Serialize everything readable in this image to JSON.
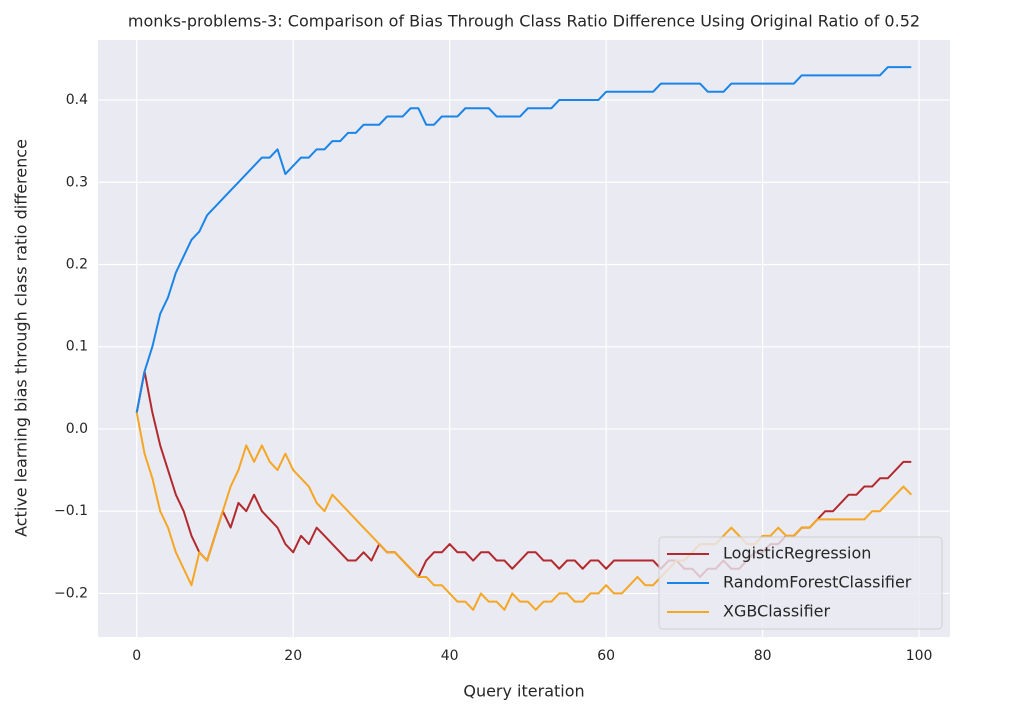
{
  "chart_data": {
    "type": "line",
    "title": "monks-problems-3: Comparison of Bias Through Class Ratio Difference Using Original Ratio of 0.52",
    "x_label": "Query iteration",
    "y_label": "Active learning bias through class ratio difference",
    "x": [
      0,
      1,
      2,
      3,
      4,
      5,
      6,
      7,
      8,
      9,
      10,
      11,
      12,
      13,
      14,
      15,
      16,
      17,
      18,
      19,
      20,
      21,
      22,
      23,
      24,
      25,
      26,
      27,
      28,
      29,
      30,
      31,
      32,
      33,
      34,
      35,
      36,
      37,
      38,
      39,
      40,
      41,
      42,
      43,
      44,
      45,
      46,
      47,
      48,
      49,
      50,
      51,
      52,
      53,
      54,
      55,
      56,
      57,
      58,
      59,
      60,
      61,
      62,
      63,
      64,
      65,
      66,
      67,
      68,
      69,
      70,
      71,
      72,
      73,
      74,
      75,
      76,
      77,
      78,
      79,
      80,
      81,
      82,
      83,
      84,
      85,
      86,
      87,
      88,
      89,
      90,
      91,
      92,
      93,
      94,
      95,
      96,
      97,
      98,
      99
    ],
    "series": [
      {
        "name": "LogisticRegression",
        "color": "#b22a2e",
        "values": [
          0.02,
          0.07,
          0.02,
          -0.02,
          -0.05,
          -0.08,
          -0.1,
          -0.13,
          -0.15,
          -0.16,
          -0.13,
          -0.1,
          -0.12,
          -0.09,
          -0.1,
          -0.08,
          -0.1,
          -0.11,
          -0.12,
          -0.14,
          -0.15,
          -0.13,
          -0.14,
          -0.12,
          -0.13,
          -0.14,
          -0.15,
          -0.16,
          -0.16,
          -0.15,
          -0.16,
          -0.14,
          -0.15,
          -0.15,
          -0.16,
          -0.17,
          -0.18,
          -0.16,
          -0.15,
          -0.15,
          -0.14,
          -0.15,
          -0.15,
          -0.16,
          -0.15,
          -0.15,
          -0.16,
          -0.16,
          -0.17,
          -0.16,
          -0.15,
          -0.15,
          -0.16,
          -0.16,
          -0.17,
          -0.16,
          -0.16,
          -0.17,
          -0.16,
          -0.16,
          -0.17,
          -0.16,
          -0.16,
          -0.16,
          -0.16,
          -0.16,
          -0.16,
          -0.17,
          -0.16,
          -0.16,
          -0.17,
          -0.17,
          -0.18,
          -0.17,
          -0.17,
          -0.16,
          -0.17,
          -0.17,
          -0.16,
          -0.15,
          -0.15,
          -0.14,
          -0.14,
          -0.13,
          -0.13,
          -0.12,
          -0.12,
          -0.11,
          -0.1,
          -0.1,
          -0.09,
          -0.08,
          -0.08,
          -0.07,
          -0.07,
          -0.06,
          -0.06,
          -0.05,
          -0.04,
          -0.04
        ]
      },
      {
        "name": "RandomForestClassifier",
        "color": "#1a85e8",
        "values": [
          0.02,
          0.07,
          0.1,
          0.14,
          0.16,
          0.19,
          0.21,
          0.23,
          0.24,
          0.26,
          0.27,
          0.28,
          0.29,
          0.3,
          0.31,
          0.32,
          0.33,
          0.33,
          0.34,
          0.31,
          0.32,
          0.33,
          0.33,
          0.34,
          0.34,
          0.35,
          0.35,
          0.36,
          0.36,
          0.37,
          0.37,
          0.37,
          0.38,
          0.38,
          0.38,
          0.39,
          0.39,
          0.37,
          0.37,
          0.38,
          0.38,
          0.38,
          0.39,
          0.39,
          0.39,
          0.39,
          0.38,
          0.38,
          0.38,
          0.38,
          0.39,
          0.39,
          0.39,
          0.39,
          0.4,
          0.4,
          0.4,
          0.4,
          0.4,
          0.4,
          0.41,
          0.41,
          0.41,
          0.41,
          0.41,
          0.41,
          0.41,
          0.42,
          0.42,
          0.42,
          0.42,
          0.42,
          0.42,
          0.41,
          0.41,
          0.41,
          0.42,
          0.42,
          0.42,
          0.42,
          0.42,
          0.42,
          0.42,
          0.42,
          0.42,
          0.43,
          0.43,
          0.43,
          0.43,
          0.43,
          0.43,
          0.43,
          0.43,
          0.43,
          0.43,
          0.43,
          0.44,
          0.44,
          0.44,
          0.44
        ]
      },
      {
        "name": "XGBClassifier",
        "color": "#f5a623",
        "values": [
          0.02,
          -0.03,
          -0.06,
          -0.1,
          -0.12,
          -0.15,
          -0.17,
          -0.19,
          -0.15,
          -0.16,
          -0.13,
          -0.1,
          -0.07,
          -0.05,
          -0.02,
          -0.04,
          -0.02,
          -0.04,
          -0.05,
          -0.03,
          -0.05,
          -0.06,
          -0.07,
          -0.09,
          -0.1,
          -0.08,
          -0.09,
          -0.1,
          -0.11,
          -0.12,
          -0.13,
          -0.14,
          -0.15,
          -0.15,
          -0.16,
          -0.17,
          -0.18,
          -0.18,
          -0.19,
          -0.19,
          -0.2,
          -0.21,
          -0.21,
          -0.22,
          -0.2,
          -0.21,
          -0.21,
          -0.22,
          -0.2,
          -0.21,
          -0.21,
          -0.22,
          -0.21,
          -0.21,
          -0.2,
          -0.2,
          -0.21,
          -0.21,
          -0.2,
          -0.2,
          -0.19,
          -0.2,
          -0.2,
          -0.19,
          -0.18,
          -0.19,
          -0.19,
          -0.18,
          -0.17,
          -0.16,
          -0.16,
          -0.15,
          -0.14,
          -0.14,
          -0.14,
          -0.13,
          -0.12,
          -0.13,
          -0.14,
          -0.14,
          -0.13,
          -0.13,
          -0.12,
          -0.13,
          -0.13,
          -0.12,
          -0.12,
          -0.11,
          -0.11,
          -0.11,
          -0.11,
          -0.11,
          -0.11,
          -0.11,
          -0.1,
          -0.1,
          -0.09,
          -0.08,
          -0.07,
          -0.08
        ]
      }
    ],
    "xlim": [
      -4.95,
      103.95
    ],
    "ylim": [
      -0.253,
      0.473
    ],
    "xticks": [
      0,
      20,
      40,
      60,
      80,
      100
    ],
    "yticks": [
      {
        "value": -0.2,
        "label": "−0.2"
      },
      {
        "value": -0.1,
        "label": "−0.1"
      },
      {
        "value": 0,
        "label": "0.0"
      },
      0.1,
      0.2,
      0.3,
      0.4
    ],
    "grid": true,
    "legend": "lower right"
  }
}
